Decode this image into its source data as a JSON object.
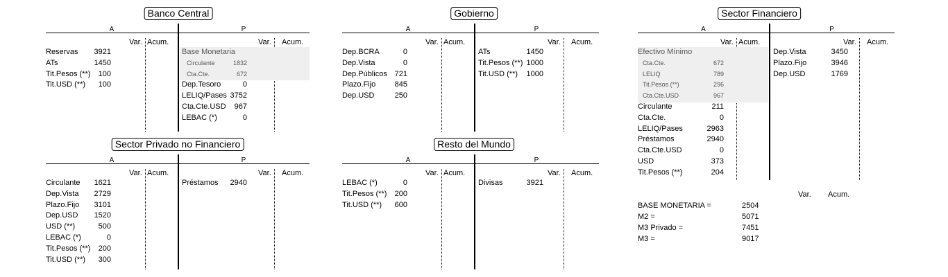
{
  "panels": [
    {
      "title": "Banco Central",
      "a_label": "A",
      "p_label": "P",
      "var_label": "Var.",
      "acum_label": "Acum.",
      "assets": [
        {
          "label": "Reservas",
          "value": "3921"
        },
        {
          "label": "ATs",
          "value": "1450"
        },
        {
          "label": "Tit.Pesos (**)",
          "value": "100"
        },
        {
          "label": "Tit.USD (**)",
          "value": "100"
        }
      ],
      "liabilities": [
        {
          "label": "Base Monetaria",
          "value": "",
          "group": true
        },
        {
          "label": "Circulante",
          "value": "1832",
          "sub": true
        },
        {
          "label": "Cta.Cte.",
          "value": "672",
          "sub": true
        },
        {
          "label": "Dep.Tesoro",
          "value": "0"
        },
        {
          "label": "LELIQ/Pases",
          "value": "3752"
        },
        {
          "label": "Cta.Cte.USD",
          "value": "967"
        },
        {
          "label": "LEBAC (*)",
          "value": "0"
        }
      ]
    },
    {
      "title": "Gobierno",
      "a_label": "A",
      "p_label": "P",
      "var_label": "Var.",
      "acum_label": "Acum.",
      "assets": [
        {
          "label": "Dep.BCRA",
          "value": "0"
        },
        {
          "label": "Dep.Vista",
          "value": "0"
        },
        {
          "label": "Dep.Públicos",
          "value": "721"
        },
        {
          "label": "Plazo.Fijo",
          "value": "845"
        },
        {
          "label": "Dep.USD",
          "value": "250"
        }
      ],
      "liabilities": [
        {
          "label": "ATs",
          "value": "1450"
        },
        {
          "label": "Tit.Pesos (**)",
          "value": "1000"
        },
        {
          "label": "Tit.USD (**)",
          "value": "1000"
        }
      ]
    },
    {
      "title": "Sector Financiero",
      "a_label": "A",
      "p_label": "P",
      "var_label": "Var.",
      "acum_label": "Acum.",
      "assets": [
        {
          "label": "Efectivo Mínimo",
          "value": "",
          "group": true
        },
        {
          "label": "Cta.Cte.",
          "value": "672",
          "sub": true
        },
        {
          "label": "LELIQ",
          "value": "789",
          "sub": true
        },
        {
          "label": "Tit.Pesos (**)",
          "value": "296",
          "sub": true
        },
        {
          "label": "Cta.Cte.USD",
          "value": "967",
          "sub": true
        },
        {
          "label": "Circulante",
          "value": "211"
        },
        {
          "label": "Cta.Cte.",
          "value": "0"
        },
        {
          "label": "LELIQ/Pases",
          "value": "2963"
        },
        {
          "label": "Préstamos",
          "value": "2940"
        },
        {
          "label": "Cta.Cte.USD",
          "value": "0"
        },
        {
          "label": "USD",
          "value": "373"
        },
        {
          "label": "Tit.Pesos (**)",
          "value": "204"
        }
      ],
      "liabilities": [
        {
          "label": "Dep.Vista",
          "value": "3450"
        },
        {
          "label": "Plazo.Fijo",
          "value": "3946"
        },
        {
          "label": "Dep.USD",
          "value": "1769"
        }
      ]
    },
    {
      "title": "Sector Privado no Financiero",
      "a_label": "A",
      "p_label": "P",
      "var_label": "Var.",
      "acum_label": "Acum.",
      "assets": [
        {
          "label": "Circulante",
          "value": "1621"
        },
        {
          "label": "Dep.Vista",
          "value": "2729"
        },
        {
          "label": "Plazo.Fijo",
          "value": "3101"
        },
        {
          "label": "Dep.USD",
          "value": "1520"
        },
        {
          "label": "USD (**)",
          "value": "500"
        },
        {
          "label": "LEBAC (*)",
          "value": "0"
        },
        {
          "label": "Tit.Pesos (**)",
          "value": "200"
        },
        {
          "label": "Tit.USD (**)",
          "value": "300"
        }
      ],
      "liabilities": [
        {
          "label": "Préstamos",
          "value": "2940"
        }
      ]
    },
    {
      "title": "Resto del Mundo",
      "a_label": "A",
      "p_label": "P",
      "var_label": "Var.",
      "acum_label": "Acum.",
      "assets": [
        {
          "label": "LEBAC (*)",
          "value": "0"
        },
        {
          "label": "Tit.Pesos (**)",
          "value": "200"
        },
        {
          "label": "Tit.USD (**)",
          "value": "600"
        }
      ],
      "liabilities": [
        {
          "label": "Divisas",
          "value": "3921"
        }
      ]
    }
  ],
  "aggregates": {
    "var_label": "Var.",
    "acum_label": "Acum.",
    "rows": [
      {
        "label": "BASE MONETARIA =",
        "value": "2504"
      },
      {
        "label": "M2 =",
        "value": "5071"
      },
      {
        "label": "M3 Privado =",
        "value": "7451"
      },
      {
        "label": "M3 =",
        "value": "9017"
      }
    ]
  }
}
